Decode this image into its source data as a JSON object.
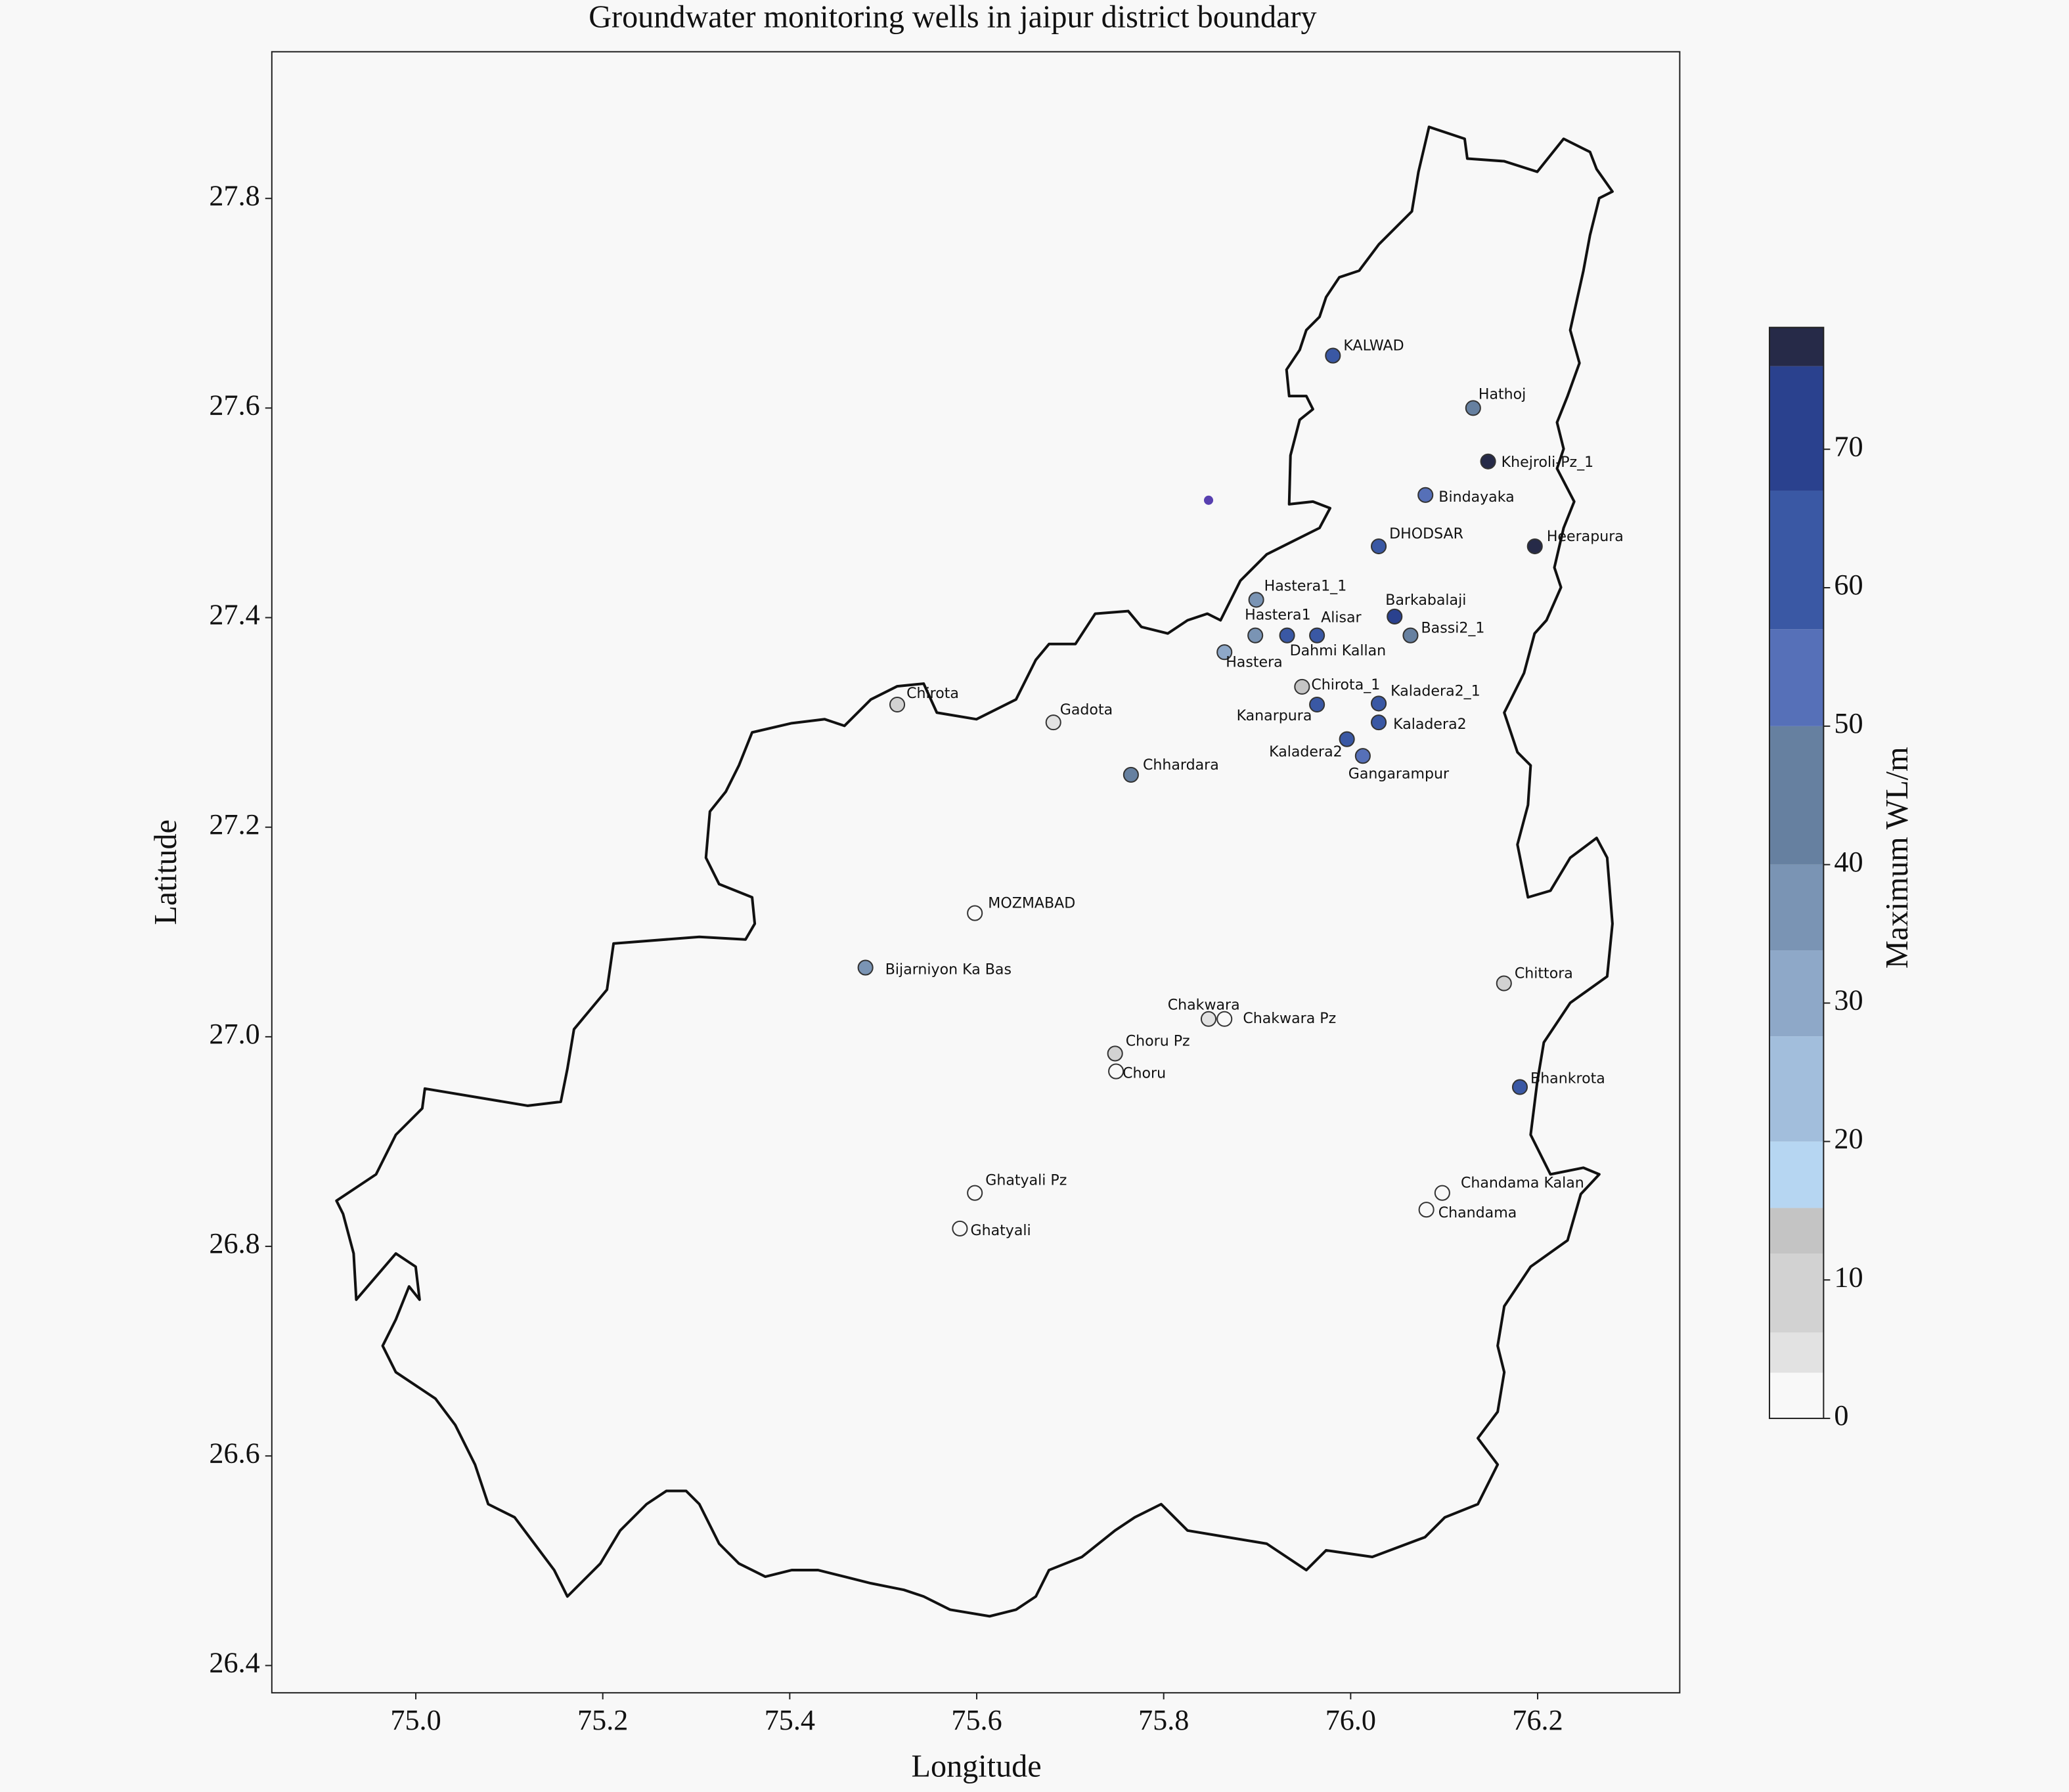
{
  "chart_data": {
    "type": "scatter",
    "title": "Groundwater monitoring wells in jaipur district boundary",
    "x_label": "Longitude",
    "y_label": "Latitude",
    "xlim": [
      74.846,
      76.352
    ],
    "ylim": [
      26.374,
      27.94
    ],
    "xticks": [
      {
        "value": 75,
        "label": "75.0"
      },
      75.2,
      75.4,
      75.6,
      75.8,
      {
        "value": 76,
        "label": "76.0"
      },
      76.2
    ],
    "yticks": [
      26.4,
      26.6,
      26.8,
      {
        "value": 27,
        "label": "27.0"
      },
      27.2,
      27.4,
      27.6,
      27.8
    ],
    "series": [
      {
        "labels": [
          "KALWAD",
          "Hathoj",
          "Khejroli-Pz_1",
          "Bindayaka",
          "DHODSAR",
          "Heerapura",
          "Hastera1_1",
          "Hastera1",
          "Dahmi Kallan",
          "Alisar",
          "Barkabalaji",
          "Bassi2_1",
          "Hastera",
          "Chirota_1",
          "Kanarpura",
          "Kaladera2_1",
          "Kaladera2",
          "Kaladera2",
          "Gangarampur",
          "Chirota",
          "Gadota",
          "Chhardara",
          "MOZMABAD",
          "Bijarniyon Ka Bas",
          "Chittora",
          "Chakwara",
          "Chakwara Pz",
          "Choru Pz",
          "Choru",
          "Bhankrota",
          "Ghatyali Pz",
          "Ghatyali",
          "Chandama Kalan",
          "Chandama"
        ],
        "x": [
          75.981,
          76.131,
          76.147,
          76.08,
          76.03,
          76.197,
          75.899,
          75.898,
          75.932,
          75.964,
          76.047,
          76.064,
          75.865,
          75.948,
          75.964,
          76.03,
          76.03,
          75.996,
          76.013,
          75.515,
          75.682,
          75.765,
          75.598,
          75.481,
          76.164,
          75.848,
          75.865,
          75.748,
          75.749,
          76.181,
          75.598,
          75.582,
          76.098,
          76.081
        ],
        "y": [
          27.65,
          27.6,
          27.549,
          27.517,
          27.468,
          27.468,
          27.417,
          27.383,
          27.383,
          27.383,
          27.401,
          27.383,
          27.367,
          27.334,
          27.317,
          27.318,
          27.3,
          27.284,
          27.268,
          27.317,
          27.3,
          27.25,
          27.118,
          27.066,
          27.051,
          27.017,
          27.017,
          26.984,
          26.967,
          26.952,
          26.851,
          26.817,
          26.851,
          26.835
        ],
        "values": [
          60,
          44,
          78,
          56,
          62,
          78,
          36,
          35,
          66,
          62,
          72,
          45,
          31,
          13,
          58,
          66,
          65,
          60,
          52,
          9,
          4,
          42,
          3,
          38,
          10,
          4,
          3,
          8,
          2,
          62,
          2,
          2,
          1,
          2
        ]
      },
      {
        "x": [
          75.848
        ],
        "y": [
          27.512
        ],
        "color": "#5840b0"
      }
    ],
    "colorbar": {
      "label": "Maximum WL/m",
      "lim": [
        0,
        78.8
      ],
      "ticks": [
        0,
        10,
        20,
        30,
        40,
        50,
        60,
        70
      ],
      "bounds": [
        0,
        3.3,
        6.2,
        11.9,
        15.2,
        20,
        27.6,
        33.8,
        40,
        50,
        57,
        67,
        76,
        78.8
      ],
      "colors": [
        "#f8f8f8",
        "#e2e2e2",
        "#d2d2d2",
        "#c4c4c4",
        "#b6d6f2",
        "#a2bedc",
        "#8ea8c8",
        "#7a94b4",
        "#6680a0",
        "#5670b8",
        "#3a58a4",
        "#2a418e",
        "#262a48"
      ]
    }
  }
}
